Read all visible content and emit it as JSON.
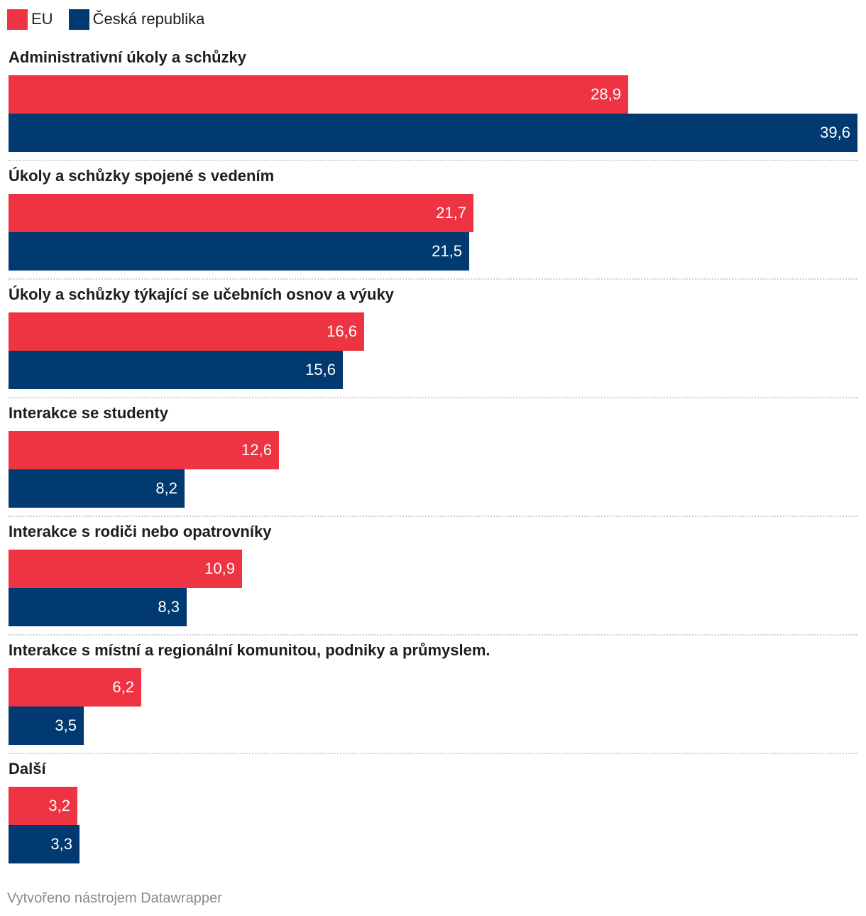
{
  "legend": {
    "eu_label": "EU",
    "cz_label": "Česká republika",
    "eu_color": "#ee3342",
    "cz_color": "#003a71"
  },
  "chart_data": {
    "type": "bar",
    "orientation": "horizontal",
    "grouped": true,
    "title": "",
    "xlabel": "",
    "ylabel": "",
    "categories": [
      "Administrativní úkoly a schůzky",
      "Úkoly a schůzky spojené s vedením",
      "Úkoly a schůzky týkající se učebních osnov a výuky",
      "Interakce se studenty",
      "Interakce s rodiči nebo opatrovníky",
      "Interakce s místní a regionální komunitou, podniky a průmyslem.",
      "Další"
    ],
    "series": [
      {
        "name": "EU",
        "color": "#ee3342",
        "values": [
          28.9,
          21.7,
          16.6,
          12.6,
          10.9,
          6.2,
          3.2
        ],
        "labels": [
          "28,9",
          "21,7",
          "16,6",
          "12,6",
          "10,9",
          "6,2",
          "3,2"
        ]
      },
      {
        "name": "Česká republika",
        "color": "#003a71",
        "values": [
          39.6,
          21.5,
          15.6,
          8.2,
          8.3,
          3.5,
          3.3
        ],
        "labels": [
          "39,6",
          "21,5",
          "15,6",
          "8,2",
          "8,3",
          "3,5",
          "3,3"
        ]
      }
    ],
    "xlim": [
      0,
      39.6
    ],
    "grid": false,
    "legend_position": "top-left"
  },
  "footer": {
    "credit": "Vytvořeno nástrojem Datawrapper"
  }
}
